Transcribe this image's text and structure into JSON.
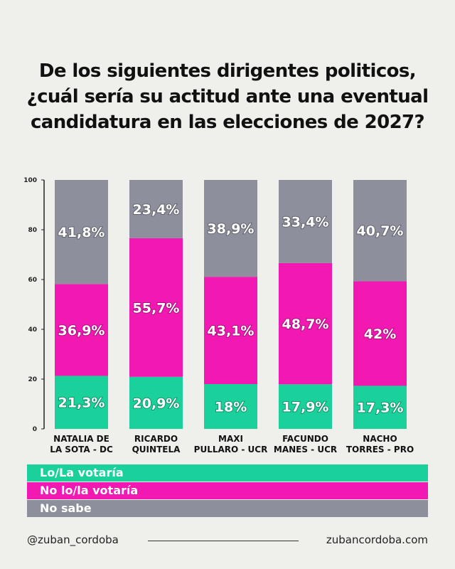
{
  "title_lines": [
    "De los siguientes dirigentes politicos,",
    "¿cuál sería su actitud ante una eventual",
    "candidatura en las elecciones de 2027?"
  ],
  "colors": {
    "votaria": "#1bd19b",
    "no_votaria": "#f219b2",
    "no_sabe": "#8d8f9c"
  },
  "chart_data": {
    "type": "bar",
    "stacked": true,
    "categories": [
      [
        "NATALIA DE",
        "LA SOTA - DC"
      ],
      [
        "RICARDO",
        "QUINTELA"
      ],
      [
        "MAXI",
        "PULLARO - UCR"
      ],
      [
        "FACUNDO",
        "MANES - UCR"
      ],
      [
        "NACHO",
        "TORRES - PRO"
      ]
    ],
    "series": [
      {
        "name": "Lo/La votaría",
        "values": [
          21.3,
          20.9,
          18,
          17.9,
          17.3
        ],
        "labels": [
          "21,3%",
          "20,9%",
          "18%",
          "17,9%",
          "17,3%"
        ]
      },
      {
        "name": "No lo/la votaría",
        "values": [
          36.9,
          55.7,
          43.1,
          48.7,
          42
        ],
        "labels": [
          "36,9%",
          "55,7%",
          "43,1%",
          "48,7%",
          "42%"
        ]
      },
      {
        "name": "No sabe",
        "values": [
          41.8,
          23.4,
          38.9,
          33.4,
          40.7
        ],
        "labels": [
          "41,8%",
          "23,4%",
          "38,9%",
          "33,4%",
          "40,7%"
        ]
      }
    ],
    "ylim": [
      0,
      100
    ],
    "yticks": [
      "0",
      "20",
      "40",
      "60",
      "80",
      "100"
    ],
    "grid": false
  },
  "legend": [
    {
      "label": "Lo/La votaría",
      "color": "#1bd19b"
    },
    {
      "label": "No lo/la votaría",
      "color": "#f219b2"
    },
    {
      "label": "No sabe",
      "color": "#8d8f9c"
    }
  ],
  "footer": {
    "left": "@zuban_cordoba",
    "right": "zubancordoba.com"
  }
}
